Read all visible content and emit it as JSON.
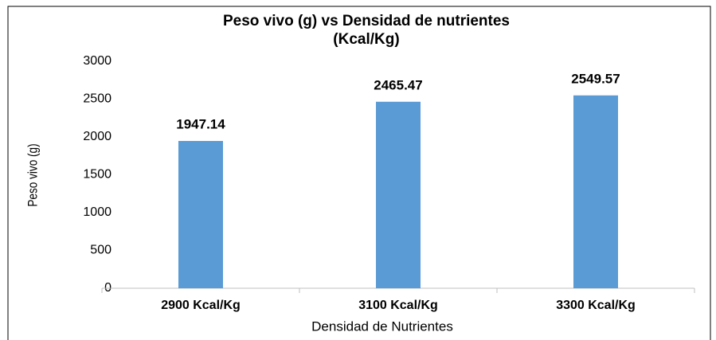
{
  "chart_data": {
    "type": "bar",
    "title": [
      "Peso vivo (g) vs Densidad de nutrientes",
      "(Kcal/Kg)"
    ],
    "x_label": "Densidad de Nutrientes",
    "y_label": "Peso vivo (g)",
    "categories": [
      "2900 Kcal/Kg",
      "3100 Kcal/Kg",
      "3300 Kcal/Kg"
    ],
    "values": [
      1947.14,
      2465.47,
      2549.57
    ],
    "value_labels": [
      "1947.14",
      "2465.47",
      "2549.57"
    ],
    "color": "#5b9bd5",
    "ylim": [
      0,
      3000
    ],
    "yticks": [
      0,
      500,
      1000,
      1500,
      2000,
      2500,
      3000
    ],
    "grid": false
  }
}
